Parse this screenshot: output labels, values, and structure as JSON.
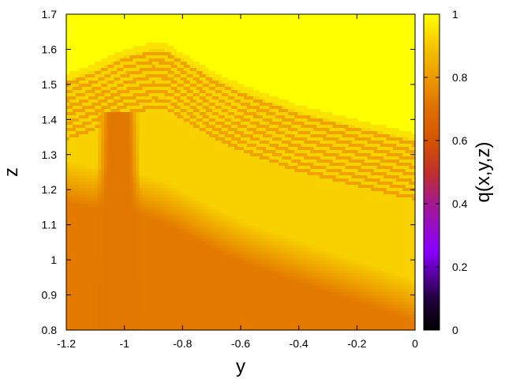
{
  "chart_data": {
    "type": "heatmap",
    "xlabel": "y",
    "ylabel": "z",
    "colorbar_label": "q(x,y,z)",
    "xlim": [
      -1.2,
      0
    ],
    "ylim": [
      0.8,
      1.7
    ],
    "clim": [
      0,
      1
    ],
    "x_ticks": [
      {
        "value": -1.2,
        "label": "-1.2"
      },
      {
        "value": -1.0,
        "label": "-1"
      },
      {
        "value": -0.8,
        "label": "-0.8"
      },
      {
        "value": -0.6,
        "label": "-0.6"
      },
      {
        "value": -0.4,
        "label": "-0.4"
      },
      {
        "value": -0.2,
        "label": "-0.2"
      },
      {
        "value": 0.0,
        "label": "0"
      }
    ],
    "y_ticks": [
      {
        "value": 0.8,
        "label": "0.8"
      },
      {
        "value": 0.9,
        "label": "0.9"
      },
      {
        "value": 1.0,
        "label": "1"
      },
      {
        "value": 1.1,
        "label": "1.1"
      },
      {
        "value": 1.2,
        "label": "1.2"
      },
      {
        "value": 1.3,
        "label": "1.3"
      },
      {
        "value": 1.4,
        "label": "1.4"
      },
      {
        "value": 1.5,
        "label": "1.5"
      },
      {
        "value": 1.6,
        "label": "1.6"
      },
      {
        "value": 1.7,
        "label": "1.7"
      }
    ],
    "colorbar_ticks": [
      {
        "value": 0,
        "label": "0"
      },
      {
        "value": 0.2,
        "label": "0.2"
      },
      {
        "value": 0.4,
        "label": "0.4"
      },
      {
        "value": 0.6,
        "label": "0.6"
      },
      {
        "value": 0.8,
        "label": "0.8"
      },
      {
        "value": 1,
        "label": "1"
      }
    ],
    "colormap": [
      {
        "v": 0.0,
        "color": "#000000"
      },
      {
        "v": 0.1,
        "color": "#22003f"
      },
      {
        "v": 0.25,
        "color": "#8a00ff"
      },
      {
        "v": 0.4,
        "color": "#a21a90"
      },
      {
        "v": 0.5,
        "color": "#c1302a"
      },
      {
        "v": 0.6,
        "color": "#d45400"
      },
      {
        "v": 0.7,
        "color": "#e06e00"
      },
      {
        "v": 0.8,
        "color": "#ec9a00"
      },
      {
        "v": 0.9,
        "color": "#f6c600"
      },
      {
        "v": 1.0,
        "color": "#ffff00"
      }
    ],
    "field": {
      "description_of_regions": [
        {
          "region": "above upper boundary",
          "value": 1.0
        },
        {
          "region": "upper light band",
          "value": 0.92
        },
        {
          "region": "lower dark region",
          "value": 0.73
        },
        {
          "region": "dark plume near y=-1.02",
          "value": 0.72
        }
      ],
      "upper_boundary": {
        "y": [
          -1.2,
          -1.1,
          -1.0,
          -0.9,
          -0.85,
          -0.8,
          -0.7,
          -0.6,
          -0.5,
          -0.4,
          -0.3,
          -0.2,
          -0.1,
          0.0
        ],
        "z": [
          1.53,
          1.56,
          1.6,
          1.62,
          1.615,
          1.59,
          1.54,
          1.5,
          1.47,
          1.44,
          1.42,
          1.4,
          1.38,
          1.36
        ]
      },
      "band_count": 9,
      "band_spacing_z": 0.022
    }
  }
}
